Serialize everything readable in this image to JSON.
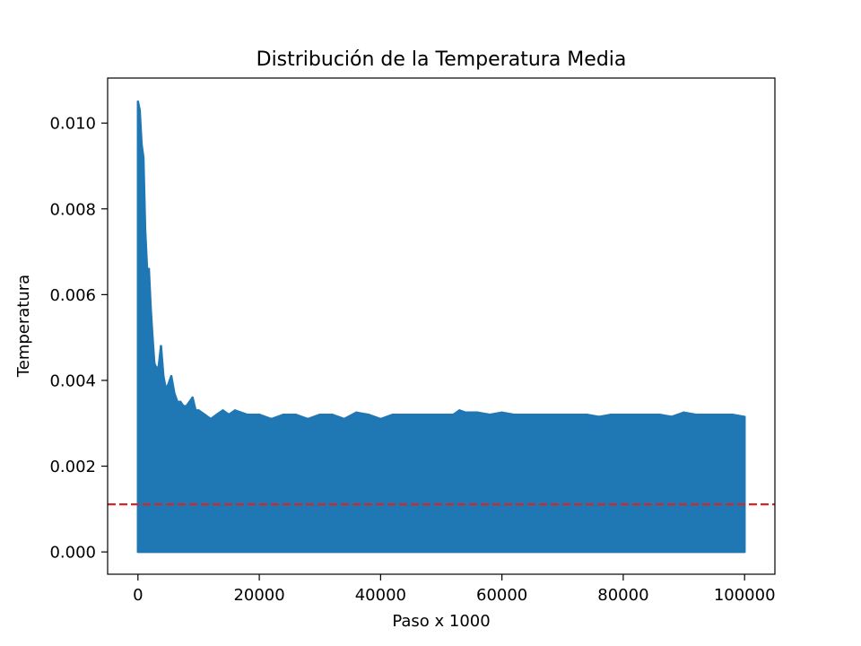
{
  "chart_data": {
    "type": "line",
    "title": "Distribución de la Temperatura Media",
    "xlabel": "Paso x 1000",
    "ylabel": "Temperatura",
    "xlim": [
      -5000,
      105000
    ],
    "ylim": [
      -0.00052,
      0.01105
    ],
    "x_ticks": [
      0,
      20000,
      40000,
      60000,
      80000,
      100000
    ],
    "x_tick_labels": [
      "0",
      "20000",
      "40000",
      "60000",
      "80000",
      "100000"
    ],
    "y_ticks": [
      0,
      0.002,
      0.004,
      0.006,
      0.008,
      0.01
    ],
    "y_tick_labels": [
      "0.000",
      "0.002",
      "0.004",
      "0.006",
      "0.008",
      "0.010"
    ],
    "grid": false,
    "series": [
      {
        "description": "rapidly oscillating temperature signal between 0 and an upper envelope",
        "color": "#1f77b4",
        "lower_envelope": 0.0,
        "x": [
          0,
          300,
          600,
          900,
          1200,
          1500,
          1800,
          2100,
          2400,
          2700,
          3000,
          3400,
          3800,
          4200,
          4600,
          5000,
          5500,
          6000,
          6500,
          7000,
          7500,
          8000,
          8500,
          9000,
          9500,
          10000,
          11000,
          12000,
          13000,
          14000,
          15000,
          16000,
          18000,
          20000,
          22000,
          24000,
          26000,
          28000,
          30000,
          32000,
          34000,
          36000,
          38000,
          40000,
          42000,
          44000,
          46000,
          48000,
          50000,
          52000,
          53000,
          54000,
          56000,
          58000,
          60000,
          62000,
          64000,
          66000,
          68000,
          70000,
          72000,
          74000,
          76000,
          78000,
          80000,
          82000,
          84000,
          86000,
          88000,
          90000,
          92000,
          94000,
          96000,
          98000,
          100000
        ],
        "upper_envelope": [
          0.0105,
          0.0103,
          0.0095,
          0.0092,
          0.0075,
          0.0066,
          0.0066,
          0.0057,
          0.005,
          0.0044,
          0.0043,
          0.0043,
          0.0048,
          0.0041,
          0.0038,
          0.0039,
          0.0041,
          0.0037,
          0.0035,
          0.0035,
          0.0034,
          0.0034,
          0.0035,
          0.0036,
          0.0033,
          0.0033,
          0.0032,
          0.0031,
          0.0032,
          0.0033,
          0.0032,
          0.0033,
          0.0032,
          0.0032,
          0.0031,
          0.0032,
          0.0032,
          0.0031,
          0.0032,
          0.0032,
          0.0031,
          0.00325,
          0.0032,
          0.0031,
          0.0032,
          0.0032,
          0.0032,
          0.0032,
          0.0032,
          0.0032,
          0.0033,
          0.00325,
          0.00325,
          0.0032,
          0.00325,
          0.0032,
          0.0032,
          0.0032,
          0.0032,
          0.0032,
          0.0032,
          0.0032,
          0.00315,
          0.0032,
          0.0032,
          0.0032,
          0.0032,
          0.0032,
          0.00315,
          0.00325,
          0.0032,
          0.0032,
          0.0032,
          0.0032,
          0.00315
        ]
      }
    ],
    "reference_lines": [
      {
        "orientation": "horizontal",
        "y": 0.00111,
        "color": "#d62728",
        "style": "dashed"
      }
    ]
  }
}
